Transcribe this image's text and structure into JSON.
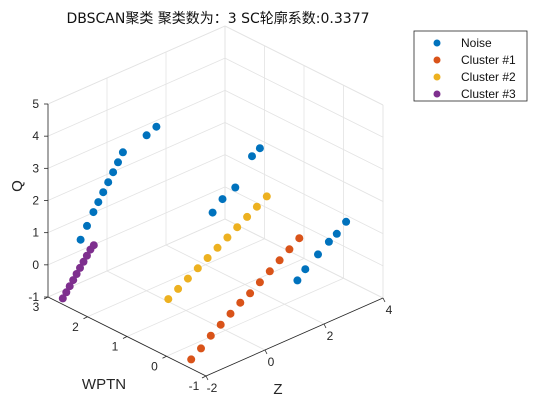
{
  "chart_data": {
    "type": "scatter",
    "title": "DBSCAN聚类  聚类数为：3  SC轮廓系数:0.3377",
    "xlabel": "Z",
    "ylabel": "WPTN",
    "zlabel": "Q",
    "xlim": [
      -2,
      4
    ],
    "ylim": [
      -1,
      3
    ],
    "zlim": [
      -1,
      5
    ],
    "xticks": [
      "-2",
      "0",
      "2",
      "4"
    ],
    "yticks": [
      "-1",
      "0",
      "1",
      "2",
      "3"
    ],
    "zticks": [
      "-1",
      "0",
      "1",
      "2",
      "3",
      "4",
      "5"
    ],
    "grid": true,
    "legend_position": "top-right",
    "series": [
      {
        "name": "Noise",
        "color": "#0072BD",
        "points": [
          [
            -1.9,
            2.25,
            1.2
          ],
          [
            -1.75,
            2.2,
            1.6
          ],
          [
            -1.6,
            2.15,
            2.0
          ],
          [
            -1.5,
            2.1,
            2.3
          ],
          [
            -1.4,
            2.05,
            2.6
          ],
          [
            -1.3,
            2.0,
            2.9
          ],
          [
            -1.2,
            1.95,
            3.2
          ],
          [
            -1.1,
            1.9,
            3.5
          ],
          [
            -1.0,
            1.85,
            3.8
          ],
          [
            -0.6,
            1.55,
            4.35
          ],
          [
            -0.4,
            1.45,
            4.6
          ],
          [
            0.3,
            0.55,
            2.2
          ],
          [
            0.5,
            0.45,
            2.6
          ],
          [
            0.8,
            0.35,
            2.9
          ],
          [
            1.3,
            0.3,
            3.7
          ],
          [
            1.5,
            0.25,
            3.9
          ],
          [
            1.7,
            -0.55,
            0.2
          ],
          [
            1.9,
            -0.6,
            0.5
          ],
          [
            2.2,
            -0.7,
            0.9
          ],
          [
            2.5,
            -0.75,
            1.2
          ],
          [
            2.7,
            -0.8,
            1.4
          ],
          [
            2.95,
            -0.85,
            1.7
          ]
        ]
      },
      {
        "name": "Cluster #1",
        "color": "#D95319",
        "points": [
          [
            -1.9,
            -0.55,
            -0.8
          ],
          [
            -1.5,
            -0.5,
            -0.65
          ],
          [
            -1.1,
            -0.45,
            -0.45
          ],
          [
            -0.7,
            -0.4,
            -0.3
          ],
          [
            -0.3,
            -0.35,
            -0.15
          ],
          [
            0.1,
            -0.3,
            0.0
          ],
          [
            0.5,
            -0.25,
            0.1
          ],
          [
            0.9,
            -0.2,
            0.25
          ],
          [
            1.3,
            -0.15,
            0.4
          ],
          [
            1.7,
            -0.1,
            0.55
          ],
          [
            2.1,
            -0.05,
            0.7
          ],
          [
            2.5,
            0.0,
            0.85
          ]
        ]
      },
      {
        "name": "Cluster #2",
        "color": "#EDB120",
        "points": [
          [
            -0.2,
            1.3,
            -0.75
          ],
          [
            0.0,
            1.2,
            -0.45
          ],
          [
            0.2,
            1.1,
            -0.15
          ],
          [
            0.4,
            1.0,
            0.15
          ],
          [
            0.6,
            0.9,
            0.45
          ],
          [
            0.8,
            0.8,
            0.75
          ],
          [
            1.0,
            0.7,
            1.05
          ],
          [
            1.2,
            0.6,
            1.35
          ],
          [
            1.4,
            0.5,
            1.65
          ],
          [
            1.6,
            0.4,
            1.95
          ],
          [
            1.8,
            0.3,
            2.25
          ]
        ]
      },
      {
        "name": "Cluster #3",
        "color": "#7E2F8E",
        "points": [
          [
            -1.9,
            2.7,
            -0.9
          ],
          [
            -1.85,
            2.65,
            -0.7
          ],
          [
            -1.8,
            2.6,
            -0.5
          ],
          [
            -1.75,
            2.55,
            -0.3
          ],
          [
            -1.7,
            2.5,
            -0.1
          ],
          [
            -1.65,
            2.45,
            0.1
          ],
          [
            -1.6,
            2.4,
            0.3
          ],
          [
            -1.55,
            2.35,
            0.5
          ],
          [
            -1.5,
            2.3,
            0.7
          ],
          [
            -1.45,
            2.25,
            0.85
          ]
        ]
      }
    ]
  }
}
